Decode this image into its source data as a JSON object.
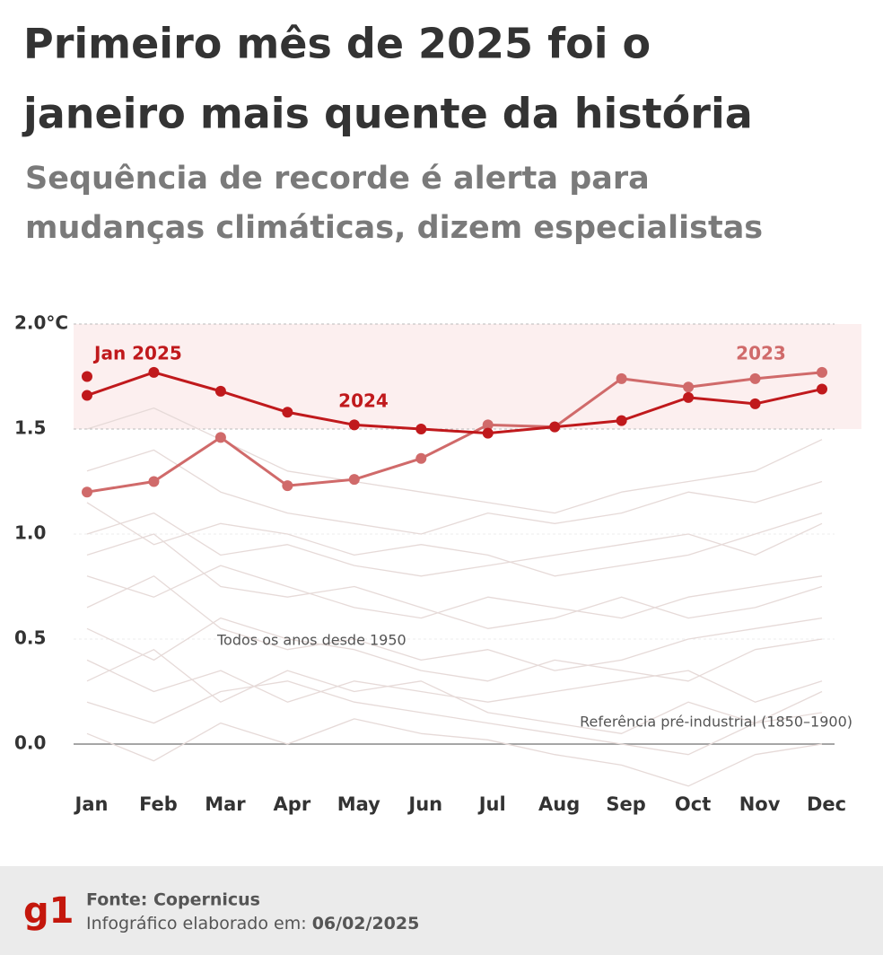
{
  "chart_data": {
    "type": "line",
    "title_lines": [
      "Primeiro mês de 2025 foi o",
      "janeiro mais quente da história"
    ],
    "subtitle_lines": [
      "Sequência de recorde é alerta para",
      "mudanças climáticas, dizem especialistas"
    ],
    "categories": [
      "Jan",
      "Feb",
      "Mar",
      "Apr",
      "May",
      "Jun",
      "Jul",
      "Aug",
      "Sep",
      "Oct",
      "Nov",
      "Dec"
    ],
    "series": [
      {
        "name": "2023",
        "color": "#d06a6a",
        "values": [
          1.2,
          1.25,
          1.46,
          1.23,
          1.26,
          1.36,
          1.52,
          1.51,
          1.74,
          1.7,
          1.74,
          1.77
        ]
      },
      {
        "name": "2024",
        "color": "#c0191c",
        "values": [
          1.66,
          1.77,
          1.68,
          1.58,
          1.52,
          1.5,
          1.48,
          1.51,
          1.54,
          1.65,
          1.62,
          1.69
        ]
      },
      {
        "name": "Jan 2025",
        "color": "#c0191c",
        "values": [
          1.75,
          null,
          null,
          null,
          null,
          null,
          null,
          null,
          null,
          null,
          null,
          null
        ]
      }
    ],
    "background_label": "Todos os anos desde 1950",
    "background_color": "#e6dad8",
    "background_series": [
      [
        0.05,
        -0.08,
        0.1,
        0.0,
        0.12,
        0.05,
        0.02,
        -0.05,
        -0.1,
        -0.2,
        -0.05,
        0.0
      ],
      [
        0.3,
        0.45,
        0.2,
        0.35,
        0.25,
        0.3,
        0.15,
        0.1,
        0.05,
        0.2,
        0.1,
        0.25
      ],
      [
        0.55,
        0.4,
        0.6,
        0.5,
        0.45,
        0.35,
        0.3,
        0.4,
        0.35,
        0.3,
        0.45,
        0.5
      ],
      [
        0.8,
        0.7,
        0.85,
        0.75,
        0.65,
        0.6,
        0.7,
        0.65,
        0.6,
        0.7,
        0.75,
        0.8
      ],
      [
        1.0,
        1.1,
        0.9,
        0.95,
        0.85,
        0.8,
        0.85,
        0.9,
        0.95,
        1.0,
        0.9,
        1.05
      ],
      [
        1.3,
        1.4,
        1.2,
        1.1,
        1.05,
        1.0,
        1.1,
        1.05,
        1.1,
        1.2,
        1.15,
        1.25
      ],
      [
        1.5,
        1.6,
        1.45,
        1.3,
        1.25,
        1.2,
        1.15,
        1.1,
        1.2,
        1.25,
        1.3,
        1.45
      ],
      [
        0.2,
        0.1,
        0.25,
        0.3,
        0.2,
        0.15,
        0.1,
        0.05,
        0.0,
        -0.05,
        0.1,
        0.15
      ],
      [
        0.65,
        0.8,
        0.55,
        0.45,
        0.5,
        0.4,
        0.45,
        0.35,
        0.4,
        0.5,
        0.55,
        0.6
      ],
      [
        0.4,
        0.25,
        0.35,
        0.2,
        0.3,
        0.25,
        0.2,
        0.25,
        0.3,
        0.35,
        0.2,
        0.3
      ],
      [
        1.15,
        0.95,
        1.05,
        1.0,
        0.9,
        0.95,
        0.9,
        0.8,
        0.85,
        0.9,
        1.0,
        1.1
      ],
      [
        0.9,
        1.0,
        0.75,
        0.7,
        0.75,
        0.65,
        0.55,
        0.6,
        0.7,
        0.6,
        0.65,
        0.75
      ]
    ],
    "band": [
      1.5,
      2.0
    ],
    "band_color": "#fcefef",
    "reference_label": "Referência pré-industrial (1850–1900)",
    "ylim": [
      -0.25,
      2.0
    ],
    "yticks": [
      {
        "value": 0,
        "label": "0.0"
      },
      {
        "value": 0.5,
        "label": "0.5"
      },
      {
        "value": 1,
        "label": "1.0"
      },
      {
        "value": 1.5,
        "label": "1.5"
      },
      {
        "value": 2,
        "label": "2.0°C"
      }
    ],
    "grid": true
  },
  "footer": {
    "logo": "g1",
    "source": "Fonte: Copernicus",
    "made_label": "Infográfico elaborado em:",
    "date": "06/02/2025"
  }
}
